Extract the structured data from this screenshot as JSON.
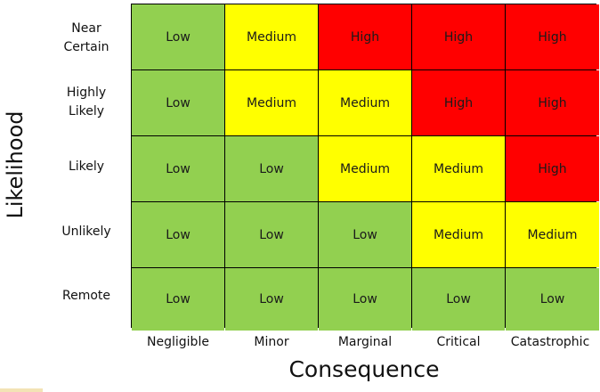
{
  "y_axis_title": "Likelihood",
  "x_axis_title": "Consequence",
  "rows": [
    "Near\nCertain",
    "Highly\nLikely",
    "Likely",
    "Unlikely",
    "Remote"
  ],
  "columns": [
    "Negligible",
    "Minor",
    "Marginal",
    "Critical",
    "Catastrophic"
  ],
  "cells": [
    [
      "Low",
      "Medium",
      "High",
      "High",
      "High"
    ],
    [
      "Low",
      "Medium",
      "Medium",
      "High",
      "High"
    ],
    [
      "Low",
      "Low",
      "Medium",
      "Medium",
      "High"
    ],
    [
      "Low",
      "Low",
      "Low",
      "Medium",
      "Medium"
    ],
    [
      "Low",
      "Low",
      "Low",
      "Low",
      "Low"
    ]
  ],
  "colors": {
    "Low": "#92d050",
    "Medium": "#ffff00",
    "High": "#ff0000",
    "grid_line": "#000000"
  }
}
